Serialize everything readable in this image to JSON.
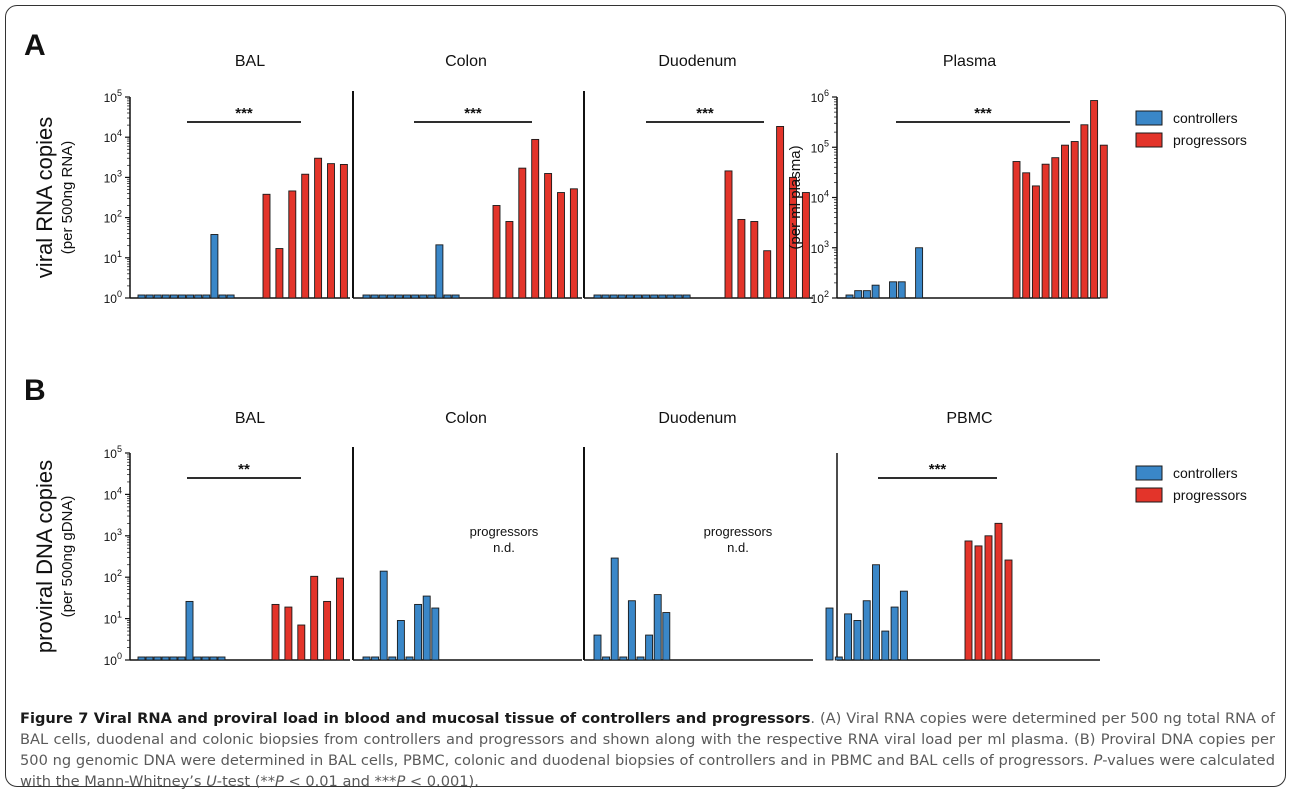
{
  "panel_labels": [
    "A",
    "B"
  ],
  "legend": {
    "controllers": "controllers",
    "progressors": "progressors",
    "colors": {
      "controllers": "#3a87c8",
      "progressors": "#e3342a"
    }
  },
  "chart_data": [
    {
      "type": "bar",
      "panel": "A",
      "title": "BAL",
      "ylabel": "viral RNA copies",
      "ylabel_sub": "(per 500ng RNA)",
      "yscale": "log",
      "ylim": [
        1,
        100000
      ],
      "y_ticks": [
        "10^0",
        "10^1",
        "10^2",
        "10^3",
        "10^4",
        "10^5"
      ],
      "controllers": [
        1,
        1,
        1,
        1,
        1,
        1,
        1,
        1,
        1,
        38,
        1,
        1
      ],
      "progressors": [
        380,
        17,
        460,
        1200,
        3000,
        2200,
        2100
      ],
      "significance": "***"
    },
    {
      "type": "bar",
      "panel": "A",
      "title": "Colon",
      "yscale": "log",
      "ylim": [
        1,
        100000
      ],
      "controllers": [
        1,
        1,
        1,
        1,
        1,
        1,
        1,
        1,
        1,
        21,
        1,
        1
      ],
      "progressors": [
        200,
        80,
        1700,
        8800,
        1250,
        420,
        520
      ],
      "significance": "***"
    },
    {
      "type": "bar",
      "panel": "A",
      "title": "Duodenum",
      "yscale": "log",
      "ylim": [
        1,
        100000
      ],
      "controllers": [
        1,
        1,
        1,
        1,
        1,
        1,
        1,
        1,
        1,
        1,
        1,
        1
      ],
      "progressors": [
        1450,
        90,
        80,
        15,
        18500,
        1000,
        420
      ],
      "significance": "***"
    },
    {
      "type": "bar",
      "panel": "A",
      "title": "Plasma",
      "ylabel_sub": "(per ml plasma)",
      "yscale": "log",
      "ylim": [
        100,
        1000000
      ],
      "y_ticks": [
        "10^2",
        "10^3",
        "10^4",
        "10^5",
        "10^6"
      ],
      "controllers": [
        100,
        140,
        140,
        180,
        0,
        210,
        210,
        0,
        1000,
        0
      ],
      "progressors": [
        52000,
        31000,
        17000,
        46000,
        62000,
        110000,
        130000,
        280000,
        850000,
        110000
      ],
      "significance": "***"
    },
    {
      "type": "bar",
      "panel": "B",
      "title": "BAL",
      "ylabel": "proviral DNA copies",
      "ylabel_sub": "(per 500ng gDNA)",
      "yscale": "log",
      "ylim": [
        1,
        100000
      ],
      "y_ticks": [
        "10^0",
        "10^1",
        "10^2",
        "10^3",
        "10^4",
        "10^5"
      ],
      "controllers": [
        1,
        1,
        1,
        1,
        1,
        1,
        26,
        1,
        1,
        1,
        1
      ],
      "progressors": [
        22,
        19,
        7,
        105,
        26,
        95
      ],
      "significance": "**"
    },
    {
      "type": "bar",
      "panel": "B",
      "title": "Colon",
      "yscale": "log",
      "ylim": [
        1,
        100000
      ],
      "controllers": [
        1,
        1,
        140,
        1,
        9,
        1,
        22,
        35,
        18
      ],
      "note": [
        "progressors",
        "n.d."
      ]
    },
    {
      "type": "bar",
      "panel": "B",
      "title": "Duodenum",
      "yscale": "log",
      "ylim": [
        1,
        100000
      ],
      "controllers": [
        4,
        1,
        290,
        1,
        27,
        1,
        4,
        38,
        14
      ],
      "note": [
        "progressors",
        "n.d."
      ]
    },
    {
      "type": "bar",
      "panel": "B",
      "title": "PBMC",
      "yscale": "log",
      "ylim": [
        1,
        100000
      ],
      "controllers": [
        18,
        1,
        13,
        9,
        27,
        200,
        5,
        19,
        46
      ],
      "progressors": [
        750,
        570,
        1000,
        2000,
        260
      ],
      "significance": "***"
    }
  ],
  "caption": {
    "title": "Figure 7 Viral RNA and proviral load in blood and mucosal tissue of controllers and progressors",
    "line1": ". (A) Viral RNA copies were determined per 500 ng total RNA of BAL cells, duodenal and colonic biopsies from controllers and progressors and shown along with the respective RNA viral load per ml plasma. (B) Proviral DNA copies per 500 ng genomic DNA were determined in BAL cells, PBMC, colonic and duodenal biopsies of controllers and in PBMC and BAL cells of progressors. ",
    "p_letter": "P",
    "line2": "-values were calculated with the Mann-Whitney’s ",
    "u_letter": "U",
    "line3": "-test (**",
    "p2": "P",
    "line4": " < 0.01 and ***",
    "p3": "P",
    "line5": " < 0.001)."
  }
}
